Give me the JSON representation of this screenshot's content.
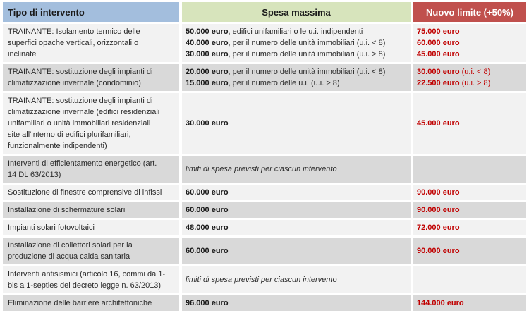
{
  "colors": {
    "header_blue": "#a3bedd",
    "header_green": "#d7e4bc",
    "header_red": "#c0504d",
    "row_light": "#f2f2f2",
    "row_dark": "#d9d9d9",
    "value_red": "#c00000",
    "text": "#2b2b2b"
  },
  "header": {
    "tipo": "Tipo di intervento",
    "spesa": "Spesa massima",
    "nuovo": "Nuovo limite (+50%)"
  },
  "rows": [
    {
      "shade": "light",
      "tipo": "TRAINANTE: Isolamento termico delle\nsuperfici opache verticali, orizzontali o\ninclinate",
      "spesa": [
        {
          "value": "50.000 euro",
          "desc": ", edifici unifamiliari o le u.i. indipendenti"
        },
        {
          "value": "40.000 euro",
          "desc": ", per il numero delle unità immobiliari (u.i. < 8)"
        },
        {
          "value": "30.000 euro",
          "desc": ", per il numero delle unità immobiliari (u.i. > 8)"
        }
      ],
      "nuovo": [
        {
          "value": "75.000 euro",
          "suffix": ""
        },
        {
          "value": "60.000 euro",
          "suffix": ""
        },
        {
          "value": "45.000 euro",
          "suffix": ""
        }
      ]
    },
    {
      "shade": "dark",
      "tipo": "TRAINANTE: sostituzione degli impianti di\nclimatizzazione invernale (condominio)",
      "spesa": [
        {
          "value": "20.000 euro",
          "desc": ", per il numero delle unità immobiliari (u.i. < 8)"
        },
        {
          "value": "15.000 euro",
          "desc": ", per il numero delle u.i.  (u.i. > 8)"
        }
      ],
      "nuovo": [
        {
          "value": "30.000 euro",
          "suffix": " (u.i. < 8)"
        },
        {
          "value": "22.500 euro",
          "suffix": " (u.i. > 8)"
        }
      ]
    },
    {
      "shade": "light",
      "tipo": "TRAINANTE: sostituzione degli impianti di\nclimatizzazione invernale (edifici residenziali\nunifamiliari o unità immobiliari residenziali\nsite all'interno di edifici plurifamiliari,\nfunzionalmente indipendenti)",
      "spesa": [
        {
          "value": "30.000 euro",
          "desc": ""
        }
      ],
      "nuovo": [
        {
          "value": "45.000 euro",
          "suffix": ""
        }
      ]
    },
    {
      "shade": "dark",
      "tipo": "Interventi di efficientamento energetico (art.\n14 DL 63/2013)",
      "spesa": [
        {
          "note": "limiti di spesa previsti per ciascun intervento"
        }
      ],
      "nuovo": []
    },
    {
      "shade": "light",
      "tipo": "Sostituzione di finestre comprensive di infissi",
      "spesa": [
        {
          "value": "60.000 euro",
          "desc": ""
        }
      ],
      "nuovo": [
        {
          "value": "90.000 euro",
          "suffix": ""
        }
      ]
    },
    {
      "shade": "dark",
      "tipo": "Installazione di schermature solari",
      "spesa": [
        {
          "value": "60.000 euro",
          "desc": ""
        }
      ],
      "nuovo": [
        {
          "value": "90.000 euro",
          "suffix": ""
        }
      ]
    },
    {
      "shade": "light",
      "tipo": "Impianti solari fotovoltaici",
      "spesa": [
        {
          "value": "48.000 euro",
          "desc": ""
        }
      ],
      "nuovo": [
        {
          "value": "72.000 euro",
          "suffix": ""
        }
      ]
    },
    {
      "shade": "dark",
      "tipo": "Installazione di collettori solari per la\nproduzione di acqua calda sanitaria",
      "spesa": [
        {
          "value": "60.000 euro",
          "desc": ""
        }
      ],
      "nuovo": [
        {
          "value": "90.000 euro",
          "suffix": ""
        }
      ]
    },
    {
      "shade": "light",
      "tipo": "Interventi antisismici (articolo 16, commi da 1-\nbis a 1-septies del decreto legge n. 63/2013)",
      "spesa": [
        {
          "note": "limiti di spesa previsti per ciascun intervento"
        }
      ],
      "nuovo": []
    },
    {
      "shade": "dark",
      "tipo": "Eliminazione delle barriere architettoniche",
      "spesa": [
        {
          "value": "96.000 euro",
          "desc": ""
        }
      ],
      "nuovo": [
        {
          "value": "144.000 euro",
          "suffix": ""
        }
      ]
    }
  ]
}
